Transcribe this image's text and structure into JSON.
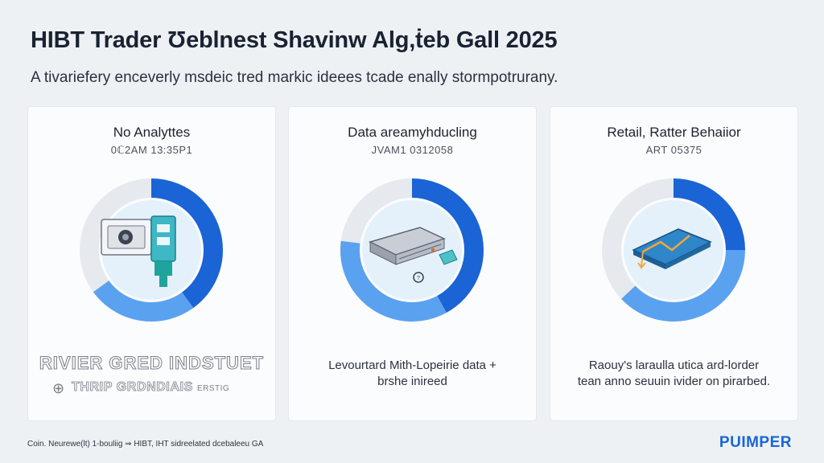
{
  "header": {
    "title": "HIBT Trader Ʊeblnest Shavinw Alg,ṫeb Gall 2025",
    "subtitle": "A tivariefery enceverly msdeic tred markic ideees tcade enally stormpotrurany."
  },
  "cards": [
    {
      "title": "No Analyttes",
      "code": "0ℂ2AM 13:35P1",
      "outline_title": "RIVIER GRED INDSTUET",
      "outline_sub": "THRIP GRDNDIAIS",
      "outline_small": "ERSTIG",
      "donut": {
        "dark": 0.4,
        "light": 0.25,
        "dark_color": "#1a64d6",
        "light_color": "#5aa2f0"
      },
      "icon": "server-card-icon"
    },
    {
      "title": "Data areamyhducling",
      "code": "JVAM1 0312058",
      "desc": "Levourtard Mith-Lopeirie data +",
      "desc2": "brshe inireed",
      "donut": {
        "dark": 0.42,
        "light": 0.35,
        "dark_color": "#1a64d6",
        "light_color": "#5aa2f0"
      },
      "icon": "server-rack-icon"
    },
    {
      "title": "Retail, Ratter Behaiior",
      "code": "ART 05375",
      "desc": "Raouy's laraulla utica ard-lorder",
      "desc2": "tean anno seuuin ivider on pirarbed.",
      "donut": {
        "dark": 0.25,
        "light": 0.38,
        "dark_color": "#1a64d6",
        "light_color": "#5aa2f0"
      },
      "icon": "chart-tile-icon"
    }
  ],
  "footer": {
    "left": "Coin. Neurewe(lt) 1-bouliig ⇒ HIBT, IHT sidreelated dcebaleeu GA",
    "brand": "PUIMPER"
  }
}
